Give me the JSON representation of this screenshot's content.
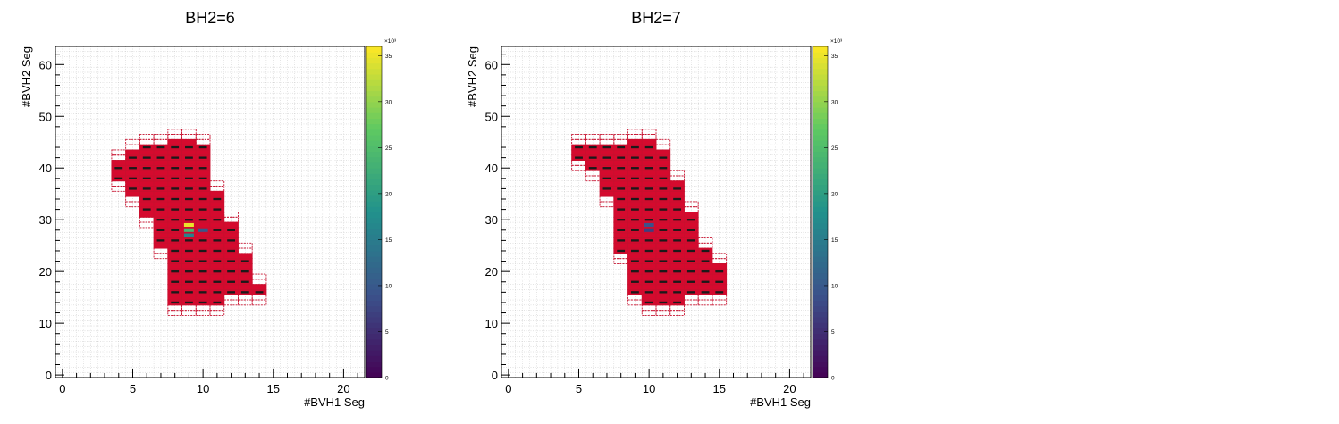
{
  "colors": {
    "bin_fill": "#d50a2e",
    "bin_edge": "#c8102e",
    "bin_mark": "#1a1a1a",
    "grid": "#c8c8c8",
    "axis": "#000000"
  },
  "chart_data": [
    {
      "type": "heatmap",
      "title": "BH2=6",
      "xlabel": "#BVH1 Seg",
      "ylabel": "#BVH2 Seg",
      "xlim": [
        -0.5,
        21.5
      ],
      "ylim": [
        -0.5,
        63.5
      ],
      "xticks": [
        "0",
        "5",
        "10",
        "15",
        "20"
      ],
      "yticks": [
        "0",
        "10",
        "20",
        "30",
        "40",
        "50",
        "60"
      ],
      "colorbar": {
        "exponent": "×10³",
        "min": 0,
        "max": 36,
        "ticks": [
          "0",
          "5",
          "10",
          "15",
          "20",
          "25",
          "30",
          "35"
        ]
      },
      "grid": true,
      "columns": [
        {
          "x": 4,
          "y": [
            36,
            43
          ]
        },
        {
          "x": 5,
          "y": [
            33,
            45
          ]
        },
        {
          "x": 6,
          "y": [
            29,
            46
          ]
        },
        {
          "x": 7,
          "y": [
            23,
            46
          ]
        },
        {
          "x": 8,
          "y": [
            12,
            47
          ]
        },
        {
          "x": 9,
          "y": [
            12,
            47
          ]
        },
        {
          "x": 10,
          "y": [
            12,
            46
          ]
        },
        {
          "x": 11,
          "y": [
            12,
            37
          ]
        },
        {
          "x": 12,
          "y": [
            14,
            31
          ]
        },
        {
          "x": 13,
          "y": [
            14,
            25
          ]
        },
        {
          "x": 14,
          "y": [
            14,
            19
          ]
        }
      ],
      "hotspots": [
        {
          "x": 9,
          "y": 29,
          "value": 35
        },
        {
          "x": 9,
          "y": 28,
          "value": 24
        },
        {
          "x": 9,
          "y": 27,
          "value": 16
        },
        {
          "x": 10,
          "y": 28,
          "value": 10
        }
      ]
    },
    {
      "type": "heatmap",
      "title": "BH2=7",
      "xlabel": "#BVH1 Seg",
      "ylabel": "#BVH2 Seg",
      "xlim": [
        -0.5,
        21.5
      ],
      "ylim": [
        -0.5,
        63.5
      ],
      "xticks": [
        "0",
        "5",
        "10",
        "15",
        "20"
      ],
      "yticks": [
        "0",
        "10",
        "20",
        "30",
        "40",
        "50",
        "60"
      ],
      "colorbar": {
        "exponent": "×10³",
        "min": 0,
        "max": 36,
        "ticks": [
          "0",
          "5",
          "10",
          "15",
          "20",
          "25",
          "30",
          "35"
        ]
      },
      "grid": true,
      "columns": [
        {
          "x": 5,
          "y": [
            40,
            46
          ]
        },
        {
          "x": 6,
          "y": [
            38,
            46
          ]
        },
        {
          "x": 7,
          "y": [
            33,
            46
          ]
        },
        {
          "x": 8,
          "y": [
            22,
            46
          ]
        },
        {
          "x": 9,
          "y": [
            14,
            47
          ]
        },
        {
          "x": 10,
          "y": [
            12,
            47
          ]
        },
        {
          "x": 11,
          "y": [
            12,
            45
          ]
        },
        {
          "x": 12,
          "y": [
            12,
            39
          ]
        },
        {
          "x": 13,
          "y": [
            14,
            33
          ]
        },
        {
          "x": 14,
          "y": [
            14,
            26
          ]
        },
        {
          "x": 15,
          "y": [
            14,
            23
          ]
        }
      ],
      "hotspots": [
        {
          "x": 10,
          "y": 29,
          "value": 9
        },
        {
          "x": 10,
          "y": 28,
          "value": 7
        }
      ]
    }
  ]
}
